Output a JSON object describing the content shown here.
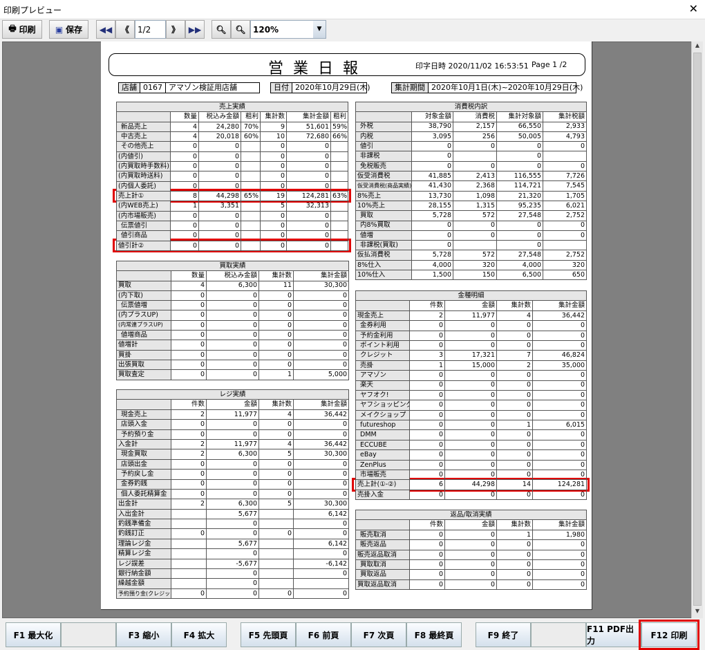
{
  "window": {
    "title": "印刷プレビュー",
    "close": "✕"
  },
  "toolbar": {
    "print": "印刷",
    "save": "保存",
    "page": "1/2",
    "zoom": "120%",
    "icons": {
      "first": "⏮",
      "prev": "《",
      "next": "》",
      "last": "⏭"
    }
  },
  "report": {
    "title": "営業日報",
    "printed": "印字日時 2020/11/02 16:53:51",
    "page": "Page 1 /2",
    "store_label": "店舗",
    "store_code": "0167",
    "store_name": "アマゾン検証用店舗",
    "date_label": "日付",
    "date": "2020年10月29日(木)",
    "period_label": "集計期間",
    "period": "2020年10月1日(木)~2020年10月29日(木)"
  },
  "tables": {
    "sales": {
      "caption": "売上実績",
      "headers": [
        "",
        "数量",
        "税込み金額",
        "粗利",
        "集計数",
        "集計金額",
        "粗利"
      ],
      "rows": [
        {
          "label": "新品売上",
          "indent": true,
          "cells": [
            "4",
            "24,280",
            "70%",
            "9",
            "51,601",
            "59%"
          ]
        },
        {
          "label": "中古売上",
          "indent": true,
          "cells": [
            "4",
            "20,018",
            "60%",
            "10",
            "72,680",
            "66%"
          ]
        },
        {
          "label": "その他売上",
          "indent": true,
          "cells": [
            "0",
            "0",
            "",
            "0",
            "0",
            ""
          ]
        },
        {
          "label": "(内値引)",
          "cells": [
            "0",
            "0",
            "",
            "0",
            "0",
            ""
          ]
        },
        {
          "label": "(内買取時手数料)",
          "cells": [
            "0",
            "0",
            "",
            "0",
            "0",
            ""
          ]
        },
        {
          "label": "(内買取時送料)",
          "cells": [
            "0",
            "0",
            "",
            "0",
            "0",
            ""
          ]
        },
        {
          "label": "(内個人委託)",
          "cells": [
            "0",
            "0",
            "",
            "0",
            "0",
            ""
          ]
        },
        {
          "label": "売上計①",
          "highlight": true,
          "cells": [
            "8",
            "44,298",
            "65%",
            "19",
            "124,281",
            "63%"
          ]
        },
        {
          "label": "(内WEB売上)",
          "cells": [
            "1",
            "3,351",
            "",
            "5",
            "32,313",
            ""
          ]
        },
        {
          "label": "(内市場販売)",
          "cells": [
            "0",
            "0",
            "",
            "0",
            "0",
            ""
          ]
        },
        {
          "label": "伝票値引",
          "indent": true,
          "cells": [
            "0",
            "0",
            "",
            "0",
            "0",
            ""
          ]
        },
        {
          "label": "値引商品",
          "indent": true,
          "cells": [
            "0",
            "0",
            "",
            "0",
            "0",
            ""
          ]
        },
        {
          "label": "値引計②",
          "highlight": true,
          "cells": [
            "0",
            "0",
            "",
            "0",
            "0",
            ""
          ]
        }
      ]
    },
    "tax": {
      "caption": "消費税内訳",
      "headers": [
        "",
        "対象金額",
        "消費税",
        "集計対象額",
        "集計税額"
      ],
      "rows": [
        {
          "label": "外税",
          "indent": true,
          "cells": [
            "38,790",
            "2,157",
            "66,550",
            "2,933"
          ]
        },
        {
          "label": "内税",
          "indent": true,
          "cells": [
            "3,095",
            "256",
            "50,005",
            "4,793"
          ]
        },
        {
          "label": "値引",
          "indent": true,
          "cells": [
            "0",
            "0",
            "0",
            "0"
          ]
        },
        {
          "label": "非課税",
          "indent": true,
          "cells": [
            "0",
            "",
            "0",
            ""
          ]
        },
        {
          "label": "免税販売",
          "indent": true,
          "cells": [
            "0",
            "0",
            "0",
            "0"
          ]
        },
        {
          "label": "仮受消費税",
          "cells": [
            "41,885",
            "2,413",
            "116,555",
            "7,726"
          ]
        },
        {
          "label": "仮受消費税(商品実績)",
          "small": true,
          "cells": [
            "41,430",
            "2,368",
            "114,721",
            "7,545"
          ]
        },
        {
          "label": "8%売上",
          "cells": [
            "13,730",
            "1,098",
            "21,320",
            "1,705"
          ]
        },
        {
          "label": "10%売上",
          "cells": [
            "28,155",
            "1,315",
            "95,235",
            "6,021"
          ]
        },
        {
          "label": "買取",
          "indent": true,
          "cells": [
            "5,728",
            "572",
            "27,548",
            "2,752"
          ]
        },
        {
          "label": "内8%買取",
          "indent": true,
          "cells": [
            "0",
            "0",
            "0",
            "0"
          ]
        },
        {
          "label": "値増",
          "indent": true,
          "cells": [
            "0",
            "0",
            "0",
            "0"
          ]
        },
        {
          "label": "非課税(買取)",
          "indent": true,
          "cells": [
            "0",
            "",
            "0",
            ""
          ]
        },
        {
          "label": "仮払消費税",
          "cells": [
            "5,728",
            "572",
            "27,548",
            "2,752"
          ]
        },
        {
          "label": "8%仕入",
          "cells": [
            "4,000",
            "320",
            "4,000",
            "320"
          ]
        },
        {
          "label": "10%仕入",
          "cells": [
            "1,500",
            "150",
            "6,500",
            "650"
          ]
        }
      ]
    },
    "purchase": {
      "caption": "買取実績",
      "headers": [
        "",
        "数量",
        "税込み金額",
        "集計数",
        "集計金額"
      ],
      "rows": [
        {
          "label": "買取",
          "cells": [
            "4",
            "6,300",
            "11",
            "30,300"
          ]
        },
        {
          "label": "(内下取)",
          "cells": [
            "0",
            "0",
            "0",
            "0"
          ]
        },
        {
          "label": "伝票値増",
          "indent": true,
          "cells": [
            "0",
            "0",
            "0",
            "0"
          ]
        },
        {
          "label": "(内プラスUP)",
          "cells": [
            "0",
            "0",
            "0",
            "0"
          ]
        },
        {
          "label": "(内常連プラスUP)",
          "small": true,
          "cells": [
            "0",
            "0",
            "0",
            "0"
          ]
        },
        {
          "label": "値増商品",
          "indent": true,
          "cells": [
            "0",
            "0",
            "0",
            "0"
          ]
        },
        {
          "label": "値増計",
          "cells": [
            "0",
            "0",
            "0",
            "0"
          ]
        },
        {
          "label": "買掛",
          "cells": [
            "0",
            "0",
            "0",
            "0"
          ]
        },
        {
          "label": "出張買取",
          "cells": [
            "0",
            "0",
            "0",
            "0"
          ]
        },
        {
          "label": "買取査定",
          "cells": [
            "0",
            "0",
            "1",
            "5,000"
          ]
        }
      ]
    },
    "register": {
      "caption": "レジ実績",
      "headers": [
        "",
        "件数",
        "金額",
        "集計数",
        "集計金額"
      ],
      "rows": [
        {
          "label": "現金売上",
          "indent": true,
          "cells": [
            "2",
            "11,977",
            "4",
            "36,442"
          ]
        },
        {
          "label": "店頭入金",
          "indent": true,
          "cells": [
            "0",
            "0",
            "0",
            "0"
          ]
        },
        {
          "label": "予約預り金",
          "indent": true,
          "cells": [
            "0",
            "0",
            "0",
            "0"
          ]
        },
        {
          "label": "入金計",
          "cells": [
            "2",
            "11,977",
            "4",
            "36,442"
          ]
        },
        {
          "label": "現金買取",
          "indent": true,
          "cells": [
            "2",
            "6,300",
            "5",
            "30,300"
          ]
        },
        {
          "label": "店頭出金",
          "indent": true,
          "cells": [
            "0",
            "0",
            "0",
            "0"
          ]
        },
        {
          "label": "予約戻し金",
          "indent": true,
          "cells": [
            "0",
            "0",
            "0",
            "0"
          ]
        },
        {
          "label": "金券釣銭",
          "indent": true,
          "cells": [
            "0",
            "0",
            "0",
            "0"
          ]
        },
        {
          "label": "個人委託精算金",
          "indent": true,
          "cells": [
            "0",
            "0",
            "0",
            "0"
          ]
        },
        {
          "label": "出金計",
          "cells": [
            "2",
            "6,300",
            "5",
            "30,300"
          ]
        },
        {
          "label": "入出金計",
          "cells": [
            "",
            "5,677",
            "",
            "6,142"
          ]
        },
        {
          "label": "釣銭準備金",
          "cells": [
            "",
            "0",
            "",
            "0"
          ]
        },
        {
          "label": "釣銭訂正",
          "cells": [
            "0",
            "0",
            "0",
            "0"
          ]
        },
        {
          "label": "理論レジ金",
          "cells": [
            "",
            "5,677",
            "",
            "6,142"
          ]
        },
        {
          "label": "精算レジ金",
          "cells": [
            "",
            "0",
            "",
            "0"
          ]
        },
        {
          "label": "レジ誤差",
          "cells": [
            "",
            "-5,677",
            "",
            "-6,142"
          ]
        },
        {
          "label": "銀行納金額",
          "cells": [
            "",
            "0",
            "",
            "0"
          ]
        },
        {
          "label": "繰越金額",
          "cells": [
            "",
            "0",
            "",
            ""
          ]
        },
        {
          "label": "予約預り金(クレジット)",
          "small": true,
          "cells": [
            "0",
            "0",
            "0",
            "0"
          ]
        }
      ]
    },
    "money": {
      "caption": "金種明細",
      "headers": [
        "",
        "件数",
        "金額",
        "集計数",
        "集計金額"
      ],
      "rows": [
        {
          "label": "現金売上",
          "cells": [
            "2",
            "11,977",
            "4",
            "36,442"
          ]
        },
        {
          "label": "金券利用",
          "indent": true,
          "cells": [
            "0",
            "0",
            "0",
            "0"
          ]
        },
        {
          "label": "予約金利用",
          "indent": true,
          "cells": [
            "0",
            "0",
            "0",
            "0"
          ]
        },
        {
          "label": "ポイント利用",
          "indent": true,
          "cells": [
            "0",
            "0",
            "0",
            "0"
          ]
        },
        {
          "label": "クレジット",
          "indent": true,
          "cells": [
            "3",
            "17,321",
            "7",
            "46,824"
          ]
        },
        {
          "label": "売掛",
          "indent": true,
          "cells": [
            "1",
            "15,000",
            "2",
            "35,000"
          ]
        },
        {
          "label": "アマゾン",
          "indent": true,
          "cells": [
            "0",
            "0",
            "0",
            "0"
          ]
        },
        {
          "label": "楽天",
          "indent": true,
          "cells": [
            "0",
            "0",
            "0",
            "0"
          ]
        },
        {
          "label": "ヤフオク!",
          "indent": true,
          "cells": [
            "0",
            "0",
            "0",
            "0"
          ]
        },
        {
          "label": "ヤフショッピング",
          "indent": true,
          "cells": [
            "0",
            "0",
            "0",
            "0"
          ]
        },
        {
          "label": "メイクショップ",
          "indent": true,
          "cells": [
            "0",
            "0",
            "0",
            "0"
          ]
        },
        {
          "label": "futureshop",
          "indent": true,
          "cells": [
            "0",
            "0",
            "1",
            "6,015"
          ]
        },
        {
          "label": "DMM",
          "indent": true,
          "cells": [
            "0",
            "0",
            "0",
            "0"
          ]
        },
        {
          "label": "ECCUBE",
          "indent": true,
          "cells": [
            "0",
            "0",
            "0",
            "0"
          ]
        },
        {
          "label": "eBay",
          "indent": true,
          "cells": [
            "0",
            "0",
            "0",
            "0"
          ]
        },
        {
          "label": "ZenPlus",
          "indent": true,
          "cells": [
            "0",
            "0",
            "0",
            "0"
          ]
        },
        {
          "label": "市場販売",
          "indent": true,
          "cells": [
            "0",
            "0",
            "0",
            "0"
          ]
        },
        {
          "label": "売上計(①-②)",
          "highlight": true,
          "cells": [
            "6",
            "44,298",
            "14",
            "124,281"
          ]
        },
        {
          "label": "売掛入金",
          "cells": [
            "0",
            "0",
            "0",
            "0"
          ]
        }
      ]
    },
    "returns": {
      "caption": "返品/取消実績",
      "headers": [
        "",
        "件数",
        "金額",
        "集計数",
        "集計金額"
      ],
      "rows": [
        {
          "label": "販売取消",
          "indent": true,
          "cells": [
            "0",
            "0",
            "1",
            "1,980"
          ]
        },
        {
          "label": "販売返品",
          "indent": true,
          "cells": [
            "0",
            "0",
            "0",
            "0"
          ]
        },
        {
          "label": "販売返品取消",
          "cells": [
            "0",
            "0",
            "0",
            "0"
          ]
        },
        {
          "label": "買取取消",
          "indent": true,
          "cells": [
            "0",
            "0",
            "0",
            "0"
          ]
        },
        {
          "label": "買取返品",
          "indent": true,
          "cells": [
            "0",
            "0",
            "0",
            "0"
          ]
        },
        {
          "label": "買取返品取消",
          "cells": [
            "0",
            "0",
            "0",
            "0"
          ]
        }
      ]
    }
  },
  "function_keys": [
    {
      "label": "F1 最大化"
    },
    {
      "label": ""
    },
    {
      "label": "F3 縮小"
    },
    {
      "label": "F4 拡大"
    },
    {
      "label": "F5 先頭頁"
    },
    {
      "label": "F6 前頁"
    },
    {
      "label": "F7 次頁"
    },
    {
      "label": "F8 最終頁"
    },
    {
      "label": "F9 終了"
    },
    {
      "label": ""
    },
    {
      "label": "F11 PDF出力"
    },
    {
      "label": "F12 印刷",
      "highlight": true
    }
  ],
  "colors": {
    "highlight": "#e00000"
  }
}
